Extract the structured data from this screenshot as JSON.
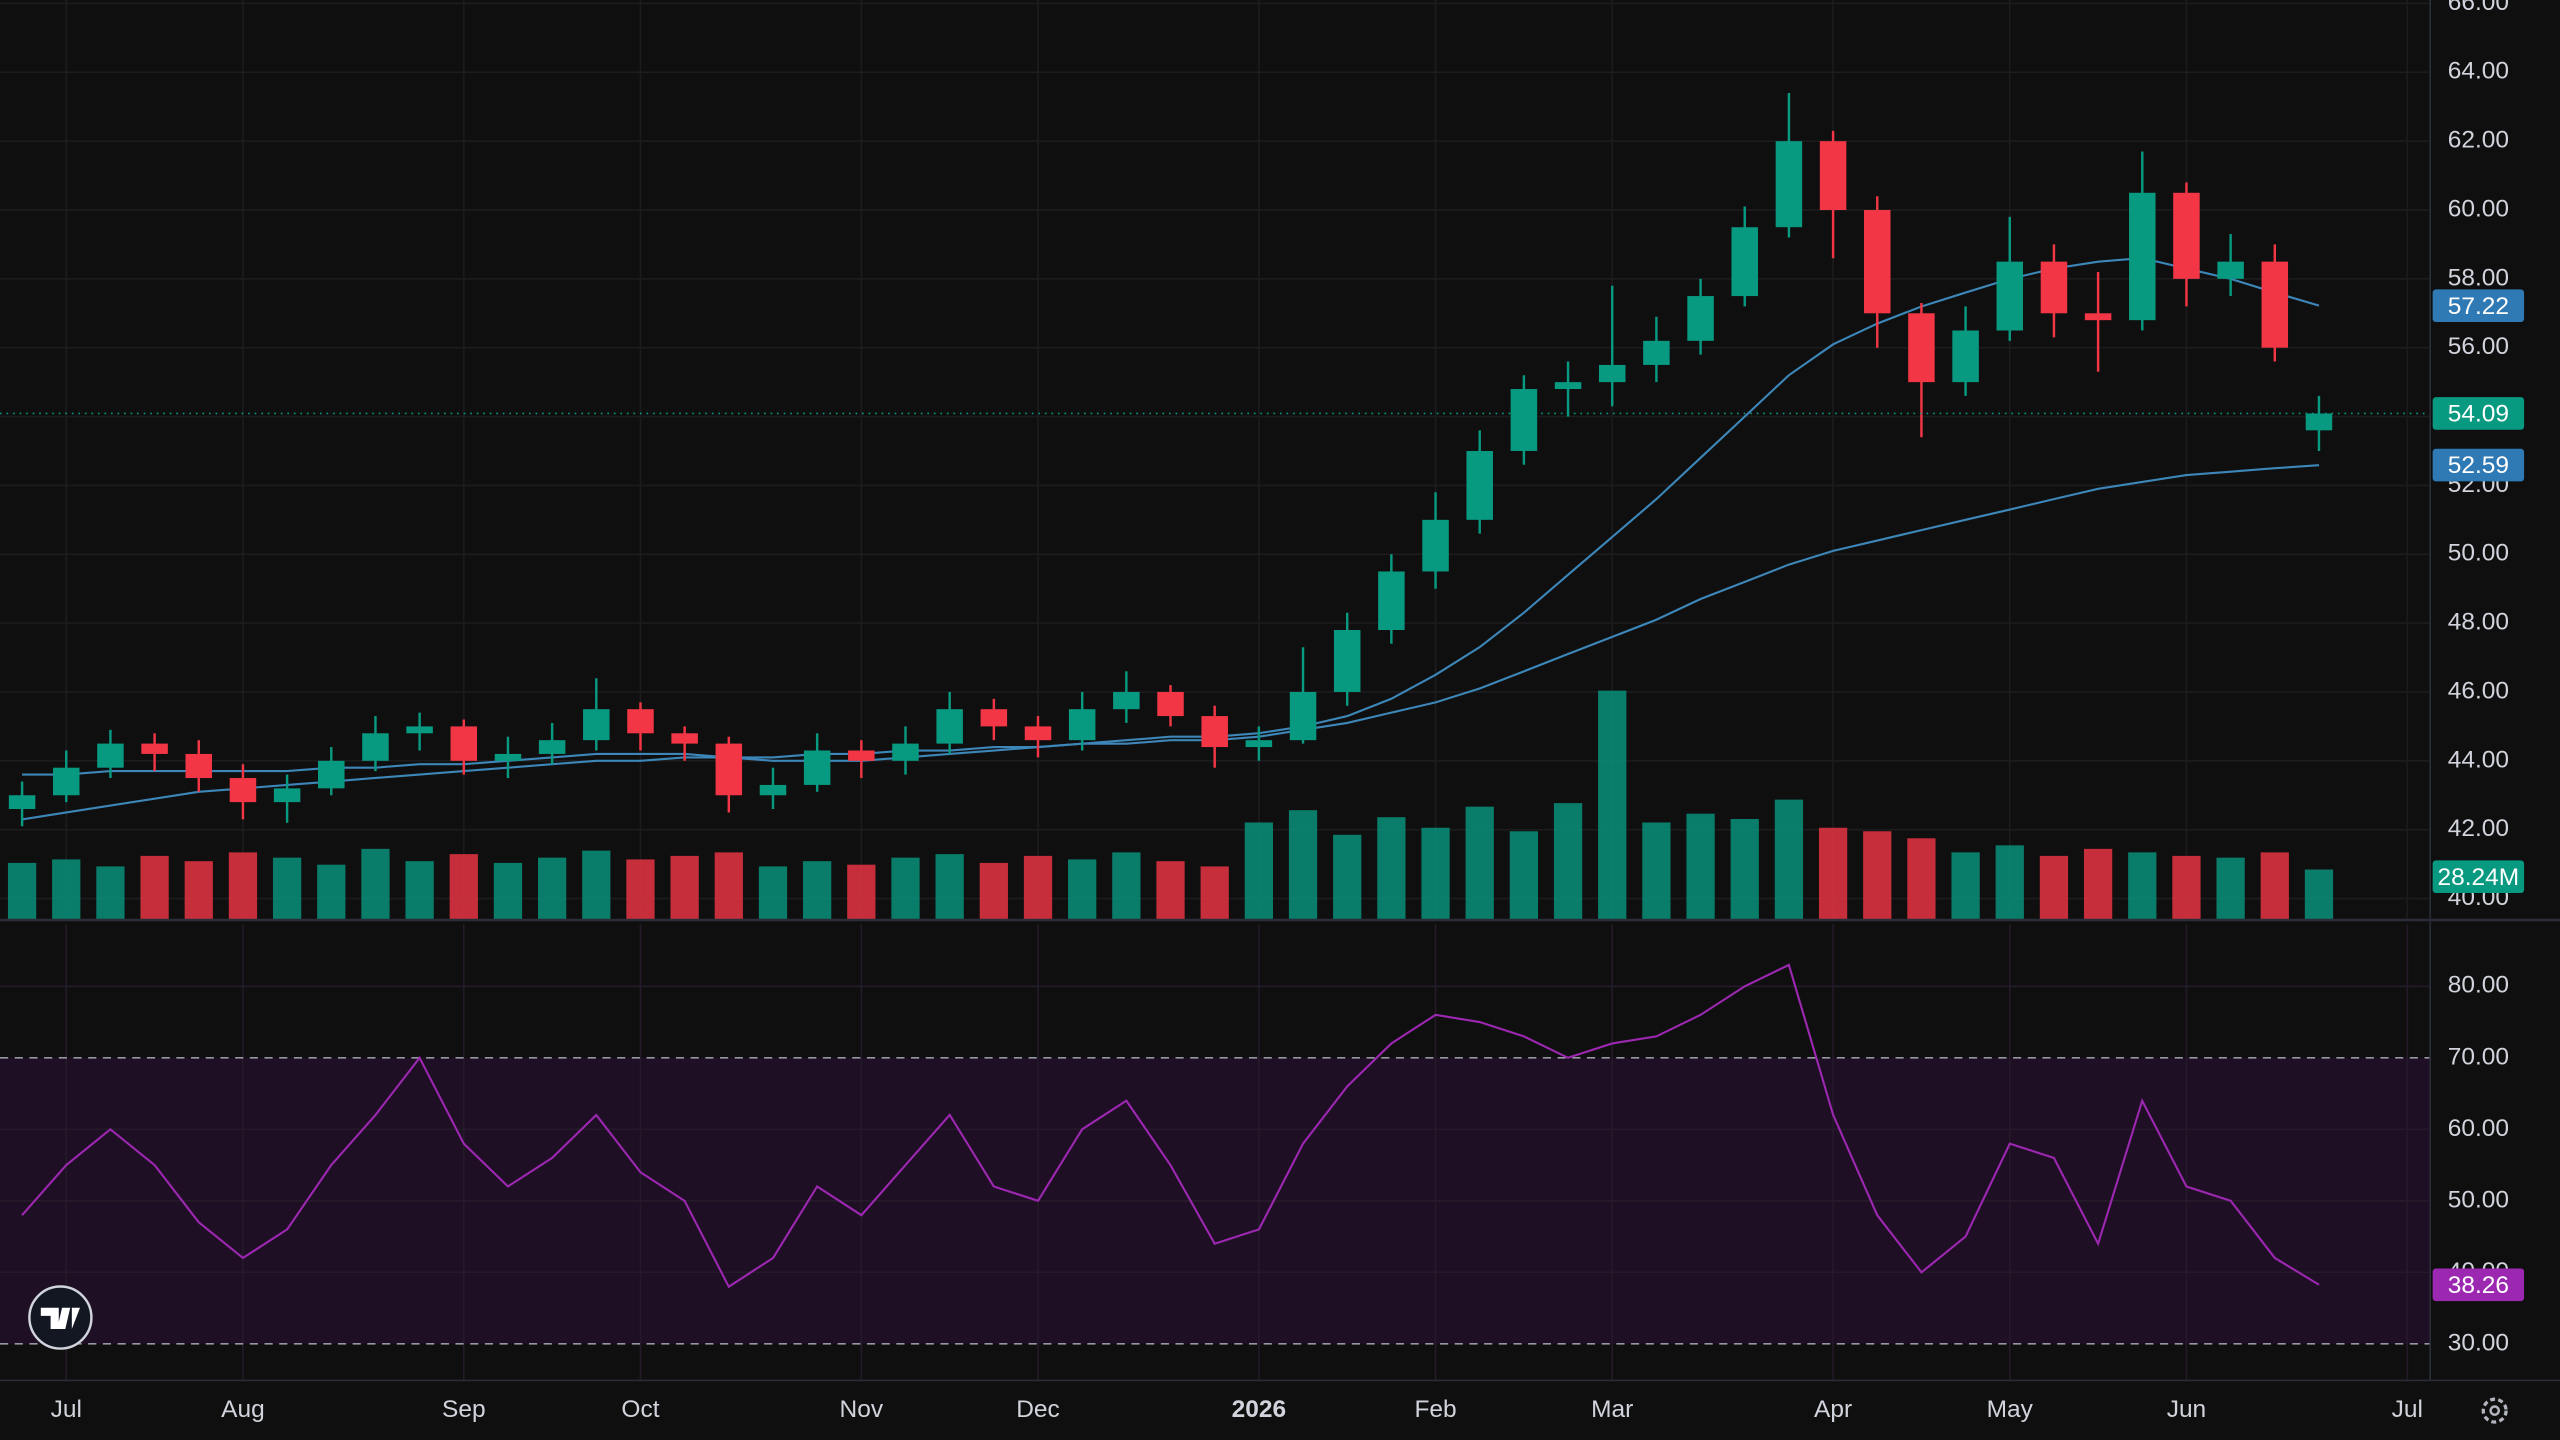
{
  "chart_data": {
    "type": "candlestick",
    "categories": [
      null,
      "Jul",
      null,
      null,
      null,
      "Aug",
      null,
      null,
      null,
      null,
      "Sep",
      null,
      null,
      null,
      "Oct",
      null,
      null,
      null,
      null,
      "Nov",
      null,
      null,
      null,
      "Dec",
      null,
      null,
      null,
      null,
      "2026",
      null,
      null,
      null,
      "Feb",
      null,
      null,
      null,
      "Mar",
      null,
      null,
      null,
      null,
      "Apr",
      null,
      null,
      null,
      "May",
      null,
      null,
      null,
      "Jun",
      null,
      null,
      null,
      null,
      "Jul"
    ],
    "open": [
      42.6,
      43.0,
      43.8,
      44.5,
      44.2,
      43.5,
      42.8,
      43.2,
      44.0,
      44.8,
      45.0,
      44.0,
      44.2,
      44.6,
      45.5,
      44.8,
      44.5,
      43.0,
      43.3,
      44.3,
      44.0,
      44.5,
      45.5,
      45.0,
      44.6,
      45.5,
      46.0,
      45.3,
      44.4,
      44.6,
      46.0,
      47.8,
      49.5,
      51.0,
      53.0,
      54.8,
      55.0,
      55.5,
      56.2,
      57.5,
      59.5,
      62.0,
      60.0,
      57.0,
      55.0,
      56.5,
      58.5,
      57.0,
      56.8,
      60.5,
      58.0,
      58.5,
      53.6,
      null,
      null
    ],
    "high": [
      43.4,
      44.3,
      44.9,
      44.8,
      44.6,
      43.9,
      43.6,
      44.4,
      45.3,
      45.4,
      45.2,
      44.7,
      45.1,
      46.4,
      45.7,
      45.0,
      44.7,
      43.8,
      44.8,
      44.6,
      45.0,
      46.0,
      45.8,
      45.3,
      46.0,
      46.6,
      46.2,
      45.6,
      45.0,
      47.3,
      48.3,
      50.0,
      51.8,
      53.6,
      55.2,
      55.6,
      57.8,
      56.9,
      58.0,
      60.1,
      63.4,
      62.3,
      60.4,
      57.3,
      57.2,
      59.8,
      59.0,
      58.2,
      61.7,
      60.8,
      59.3,
      59.0,
      54.6,
      null,
      null
    ],
    "low": [
      42.1,
      42.8,
      43.5,
      43.7,
      43.1,
      42.3,
      42.2,
      43.0,
      43.7,
      44.3,
      43.6,
      43.5,
      43.9,
      44.3,
      44.3,
      44.0,
      42.5,
      42.6,
      43.1,
      43.5,
      43.6,
      44.2,
      44.6,
      44.1,
      44.3,
      45.1,
      45.0,
      43.8,
      44.0,
      44.5,
      45.6,
      47.4,
      49.0,
      50.6,
      52.6,
      54.0,
      54.3,
      55.0,
      55.8,
      57.2,
      59.2,
      58.6,
      56.0,
      53.4,
      54.6,
      56.2,
      56.3,
      55.3,
      56.5,
      57.2,
      57.5,
      55.6,
      53.0,
      null,
      null
    ],
    "close": [
      43.0,
      43.8,
      44.5,
      44.2,
      43.5,
      42.8,
      43.2,
      44.0,
      44.8,
      45.0,
      44.0,
      44.2,
      44.6,
      45.5,
      44.8,
      44.5,
      43.0,
      43.3,
      44.3,
      44.0,
      44.5,
      45.5,
      45.0,
      44.6,
      45.5,
      46.0,
      45.3,
      44.4,
      44.6,
      46.0,
      47.8,
      49.5,
      51.0,
      53.0,
      54.8,
      55.0,
      55.5,
      56.2,
      57.5,
      59.5,
      62.0,
      60.0,
      57.0,
      55.0,
      56.5,
      58.5,
      57.0,
      56.8,
      60.5,
      58.0,
      58.5,
      56.0,
      54.09,
      null,
      null
    ],
    "up_color": "#089981",
    "down_color": "#f23645",
    "ylim": [
      39.4,
      66.1
    ],
    "yticks": [
      {
        "value": 40,
        "label": "40.00"
      },
      {
        "value": 42,
        "label": "42.00"
      },
      {
        "value": 44,
        "label": "44.00"
      },
      {
        "value": 46,
        "label": "46.00"
      },
      {
        "value": 48,
        "label": "48.00"
      },
      {
        "value": 50,
        "label": "50.00"
      },
      {
        "value": 52,
        "label": "52.00"
      },
      {
        "value": 54,
        "label": "54.00"
      },
      {
        "value": 56,
        "label": "56.00"
      },
      {
        "value": 58,
        "label": "58.00"
      },
      {
        "value": 60,
        "label": "60.00"
      },
      {
        "value": 62,
        "label": "62.00"
      },
      {
        "value": 64,
        "label": "64.00"
      },
      {
        "value": 66,
        "label": "66.00"
      }
    ],
    "grid": true,
    "moving_averages": [
      {
        "color": "#3d86b8",
        "badge_color": "#2f79b4",
        "values": [
          43.6,
          43.6,
          43.7,
          43.7,
          43.7,
          43.7,
          43.7,
          43.8,
          43.8,
          43.9,
          43.9,
          44.0,
          44.1,
          44.2,
          44.2,
          44.2,
          44.1,
          44.0,
          44.0,
          44.0,
          44.1,
          44.2,
          44.3,
          44.4,
          44.5,
          44.6,
          44.7,
          44.7,
          44.8,
          45.0,
          45.3,
          45.8,
          46.5,
          47.3,
          48.3,
          49.4,
          50.5,
          51.6,
          52.8,
          54.0,
          55.2,
          56.1,
          56.7,
          57.2,
          57.6,
          58.0,
          58.3,
          58.5,
          58.6,
          58.3,
          58.0,
          57.6,
          57.22,
          null,
          null
        ]
      },
      {
        "color": "#3d86b8",
        "badge_color": "#2f79b4",
        "values": [
          42.3,
          42.5,
          42.7,
          42.9,
          43.1,
          43.2,
          43.3,
          43.4,
          43.5,
          43.6,
          43.7,
          43.8,
          43.9,
          44.0,
          44.0,
          44.1,
          44.1,
          44.1,
          44.2,
          44.2,
          44.3,
          44.3,
          44.4,
          44.4,
          44.5,
          44.5,
          44.6,
          44.6,
          44.7,
          44.9,
          45.1,
          45.4,
          45.7,
          46.1,
          46.6,
          47.1,
          47.6,
          48.1,
          48.7,
          49.2,
          49.7,
          50.1,
          50.4,
          50.7,
          51.0,
          51.3,
          51.6,
          51.9,
          52.1,
          52.3,
          52.4,
          52.5,
          52.59,
          null,
          null
        ]
      }
    ],
    "volume": {
      "values": [
        32,
        34,
        30,
        36,
        33,
        38,
        35,
        31,
        40,
        33,
        37,
        32,
        35,
        39,
        34,
        36,
        38,
        30,
        33,
        31,
        35,
        37,
        32,
        36,
        34,
        38,
        33,
        30,
        55,
        62,
        48,
        58,
        52,
        64,
        50,
        66,
        130,
        55,
        60,
        57,
        68,
        52,
        50,
        46,
        38,
        42,
        36,
        40,
        38,
        36,
        35,
        38,
        28.24,
        null,
        null
      ],
      "last_value_label": "28.24M"
    },
    "rsi": {
      "color": "#9c27b0",
      "badge_color": "#9c27b0",
      "band_color": "#1e0f24",
      "band": [
        30,
        70
      ],
      "values": [
        48,
        55,
        60,
        55,
        47,
        42,
        46,
        55,
        62,
        70,
        58,
        52,
        56,
        62,
        54,
        50,
        38,
        42,
        52,
        48,
        55,
        62,
        52,
        50,
        60,
        64,
        55,
        44,
        46,
        58,
        66,
        72,
        76,
        75,
        73,
        70,
        72,
        73,
        76,
        80,
        83,
        62,
        48,
        40,
        45,
        58,
        56,
        44,
        64,
        52,
        50,
        42,
        38.26,
        null,
        null
      ],
      "ylim": [
        25,
        88.7
      ],
      "yticks": [
        {
          "value": 30,
          "label": "30.00"
        },
        {
          "value": 40,
          "label": "40.00"
        },
        {
          "value": 50,
          "label": "50.00"
        },
        {
          "value": 60,
          "label": "60.00"
        },
        {
          "value": 70,
          "label": "70.00"
        },
        {
          "value": 80,
          "label": "80.00"
        }
      ]
    }
  }
}
